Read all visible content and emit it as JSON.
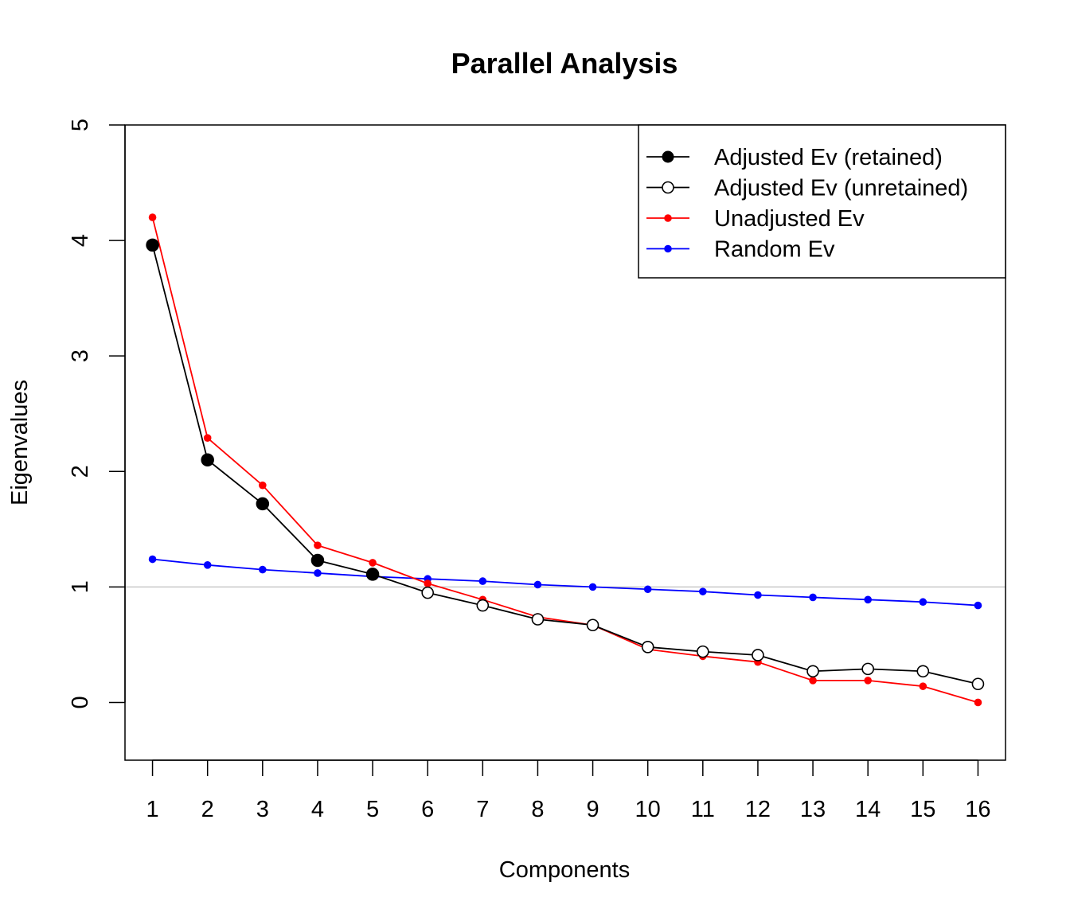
{
  "chart_data": {
    "type": "line",
    "title": "Parallel Analysis",
    "xlabel": "Components",
    "ylabel": "Eigenvalues",
    "x": [
      1,
      2,
      3,
      4,
      5,
      6,
      7,
      8,
      9,
      10,
      11,
      12,
      13,
      14,
      15,
      16
    ],
    "xlim": [
      0.5,
      16.5
    ],
    "ylim": [
      -0.5,
      5
    ],
    "xticks": [
      1,
      2,
      3,
      4,
      5,
      6,
      7,
      8,
      9,
      10,
      11,
      12,
      13,
      14,
      15,
      16
    ],
    "yticks": [
      0,
      1,
      2,
      3,
      4,
      5
    ],
    "reference_line": {
      "y": 1,
      "color": "#bfbfbf"
    },
    "retained_count": 5,
    "series": [
      {
        "name": "Adjusted Ev (retained)",
        "color": "#000000",
        "marker": "filled-circle",
        "x": [
          1,
          2,
          3,
          4,
          5
        ],
        "values": [
          3.96,
          2.1,
          1.72,
          1.23,
          1.11
        ]
      },
      {
        "name": "Adjusted Ev (unretained)",
        "color": "#000000",
        "marker": "open-circle",
        "x": [
          6,
          7,
          8,
          9,
          10,
          11,
          12,
          13,
          14,
          15,
          16
        ],
        "values": [
          0.95,
          0.84,
          0.72,
          0.67,
          0.48,
          0.44,
          0.41,
          0.27,
          0.29,
          0.27,
          0.16
        ]
      },
      {
        "name": "Unadjusted Ev",
        "color": "#ff0000",
        "marker": "small-dot",
        "x": [
          1,
          2,
          3,
          4,
          5,
          6,
          7,
          8,
          9,
          10,
          11,
          12,
          13,
          14,
          15,
          16
        ],
        "values": [
          4.2,
          2.29,
          1.88,
          1.36,
          1.21,
          1.03,
          0.89,
          0.74,
          0.67,
          0.46,
          0.4,
          0.35,
          0.19,
          0.19,
          0.14,
          0.0
        ]
      },
      {
        "name": "Random Ev",
        "color": "#0000ff",
        "marker": "small-dot",
        "x": [
          1,
          2,
          3,
          4,
          5,
          6,
          7,
          8,
          9,
          10,
          11,
          12,
          13,
          14,
          15,
          16
        ],
        "values": [
          1.24,
          1.19,
          1.15,
          1.12,
          1.09,
          1.07,
          1.05,
          1.02,
          1.0,
          0.98,
          0.96,
          0.93,
          0.91,
          0.89,
          0.87,
          0.84
        ]
      }
    ],
    "legend": {
      "placement": "top-right",
      "entries": [
        {
          "label": "Adjusted Ev (retained)",
          "color": "#000000",
          "marker": "filled-circle"
        },
        {
          "label": "Adjusted Ev (unretained)",
          "color": "#000000",
          "marker": "open-circle"
        },
        {
          "label": "Unadjusted Ev",
          "color": "#ff0000",
          "marker": "small-dot"
        },
        {
          "label": "Random Ev",
          "color": "#0000ff",
          "marker": "small-dot"
        }
      ]
    }
  }
}
